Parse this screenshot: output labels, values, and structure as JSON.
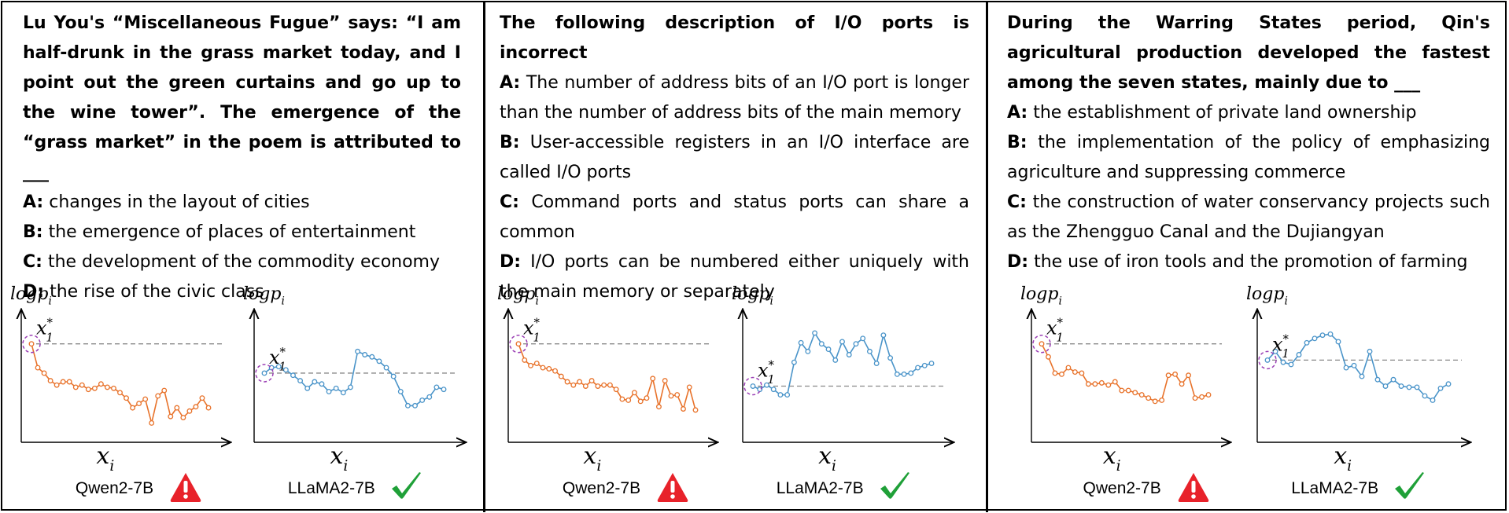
{
  "panels": [
    {
      "question": "Lu You's “Miscellaneous Fugue” says: “I am half-drunk in the grass market today, and I point out the green curtains and go up to the wine tower”. The emergence of the “grass market” in the poem is attributed to ___",
      "options": [
        {
          "key": "A:",
          "text": "changes in the layout of cities"
        },
        {
          "key": "B:",
          "text": "the emergence of places of entertainment"
        },
        {
          "key": "C:",
          "text": "the development of the commodity economy"
        },
        {
          "key": "D:",
          "text": "the rise of the civic class"
        }
      ],
      "models": [
        {
          "name": "Qwen2-7B",
          "verdict": "warning-icon",
          "color": "#e8722a",
          "values": [
            0.85,
            0.63,
            0.58,
            0.51,
            0.47,
            0.5,
            0.5,
            0.45,
            0.47,
            0.43,
            0.44,
            0.48,
            0.45,
            0.44,
            0.4,
            0.35,
            0.26,
            0.3,
            0.34,
            0.12,
            0.37,
            0.42,
            0.18,
            0.26,
            0.17,
            0.23,
            0.27,
            0.35,
            0.26
          ]
        },
        {
          "name": "LLaMA2-7B",
          "verdict": "check-icon",
          "color": "#4a94c9",
          "values": [
            0.58,
            0.63,
            0.64,
            0.61,
            0.56,
            0.51,
            0.44,
            0.5,
            0.48,
            0.41,
            0.44,
            0.4,
            0.45,
            0.78,
            0.75,
            0.73,
            0.69,
            0.63,
            0.55,
            0.41,
            0.28,
            0.28,
            0.33,
            0.36,
            0.45,
            0.43
          ]
        }
      ]
    },
    {
      "question": "The following description of I/O ports is incorrect",
      "options": [
        {
          "key": "A:",
          "text": "The number of address bits of an I/O port is longer than the  number of address bits of the main memory"
        },
        {
          "key": "B:",
          "text": "User-accessible registers in an I/O interface are called I/O ports"
        },
        {
          "key": "C:",
          "text": "Command ports and status ports can share a common"
        },
        {
          "key": "D:",
          "text": "I/O ports can be numbered either uniquely with the main memory or separately"
        }
      ],
      "models": [
        {
          "name": "Qwen2-7B",
          "verdict": "warning-icon",
          "color": "#e8722a",
          "values": [
            0.85,
            0.7,
            0.65,
            0.67,
            0.63,
            0.62,
            0.6,
            0.55,
            0.5,
            0.47,
            0.5,
            0.46,
            0.51,
            0.46,
            0.47,
            0.47,
            0.43,
            0.34,
            0.33,
            0.4,
            0.32,
            0.35,
            0.53,
            0.27,
            0.51,
            0.37,
            0.38,
            0.25,
            0.45,
            0.24
          ]
        },
        {
          "name": "LLaMA2-7B",
          "verdict": "check-icon",
          "color": "#4a94c9",
          "values": [
            0.46,
            0.43,
            0.47,
            0.43,
            0.38,
            0.38,
            0.68,
            0.86,
            0.78,
            0.95,
            0.85,
            0.8,
            0.7,
            0.87,
            0.75,
            0.85,
            0.9,
            0.78,
            0.67,
            0.93,
            0.72,
            0.57,
            0.57,
            0.58,
            0.63,
            0.65,
            0.67
          ]
        }
      ]
    },
    {
      "question": "During the Warring States period, Qin's agricultural production developed the fastest among the seven states, mainly due to ___",
      "options": [
        {
          "key": "A:",
          "text": "the establishment of private land ownership"
        },
        {
          "key": "B:",
          "text": "the implementation of the policy of emphasizing agriculture and suppressing commerce"
        },
        {
          "key": "C:",
          "text": "the construction of water conservancy projects such as the Zhengguo Canal and the Dujiangyan"
        },
        {
          "key": "D:",
          "text": "the use of iron tools and the promotion of farming"
        }
      ],
      "models": [
        {
          "name": "Qwen2-7B",
          "verdict": "warning-icon",
          "color": "#e8722a",
          "values": [
            0.85,
            0.73,
            0.58,
            0.57,
            0.63,
            0.59,
            0.58,
            0.48,
            0.48,
            0.49,
            0.47,
            0.5,
            0.42,
            0.42,
            0.4,
            0.38,
            0.35,
            0.32,
            0.33,
            0.56,
            0.57,
            0.48,
            0.56,
            0.35,
            0.36,
            0.38
          ]
        },
        {
          "name": "LLaMA2-7B",
          "verdict": "check-icon",
          "color": "#4a94c9",
          "values": [
            0.7,
            0.78,
            0.68,
            0.66,
            0.75,
            0.86,
            0.9,
            0.93,
            0.94,
            0.87,
            0.63,
            0.65,
            0.55,
            0.78,
            0.52,
            0.46,
            0.52,
            0.46,
            0.45,
            0.45,
            0.37,
            0.33,
            0.44,
            0.48
          ]
        }
      ]
    }
  ],
  "axis": {
    "ylabel_main": "logp",
    "ylabel_sub": "i",
    "xlabel_main": "x",
    "xlabel_sub": "i",
    "marker_main": "x",
    "marker_sup": "*",
    "marker_sub": "1"
  }
}
